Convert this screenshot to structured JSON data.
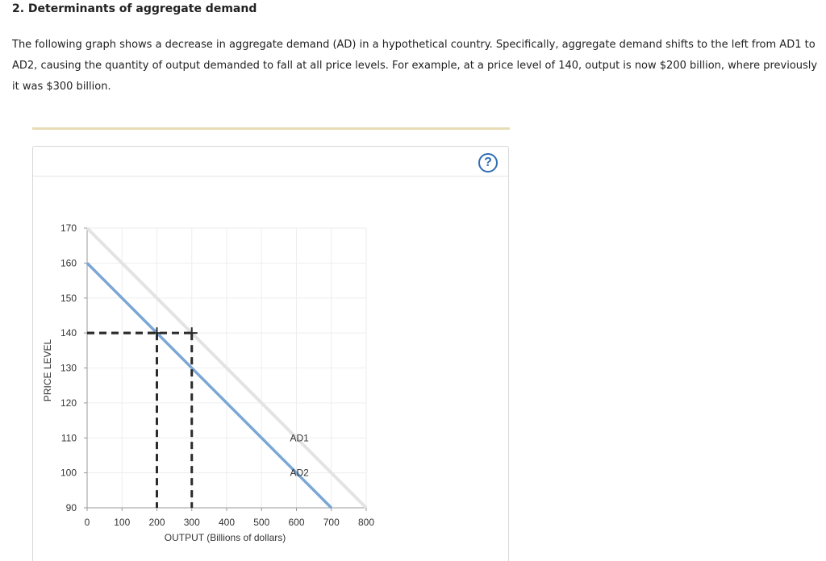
{
  "question": {
    "heading": "2. Determinants of aggregate demand",
    "intro": "The following graph shows a decrease in aggregate demand (AD) in a hypothetical country. Specifically, aggregate demand shifts to the left from AD1 to AD2, causing the quantity of output demanded to fall at all price levels. For example, at a price level of 140, output is now $200 billion, where previously it was $300 billion."
  },
  "help": {
    "label": "?",
    "icon": "question-circle-icon"
  },
  "colors": {
    "ad1": "#e3e3e3",
    "ad2": "#7aa7d6",
    "guides": "#2b2b2b",
    "grid": "#eeeeee",
    "help": "#2f6db5"
  },
  "chart_data": {
    "type": "line",
    "xlabel": "OUTPUT (Billions of dollars)",
    "ylabel": "PRICE LEVEL",
    "xlim": [
      0,
      800
    ],
    "ylim": [
      90,
      170
    ],
    "xticks": [
      0,
      100,
      200,
      300,
      400,
      500,
      600,
      700,
      800
    ],
    "yticks": [
      90,
      100,
      110,
      120,
      130,
      140,
      150,
      160,
      170
    ],
    "grid": true,
    "series": [
      {
        "name": "AD1",
        "x": [
          0,
          800
        ],
        "y": [
          170,
          90
        ]
      },
      {
        "name": "AD2",
        "x": [
          0,
          700
        ],
        "y": [
          160,
          90
        ]
      }
    ],
    "guides": [
      {
        "x": 200,
        "y": 140
      },
      {
        "x": 300,
        "y": 140
      }
    ]
  }
}
